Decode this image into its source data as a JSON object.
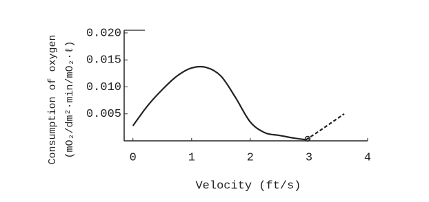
{
  "chart_data": {
    "type": "line",
    "y_label": "Consumption of oxygen",
    "y_label_units": "(mO₂/dm²·min/mO₂·ℓ)",
    "x_label": "Velocity (ft/s)",
    "xlim": [
      -0.15,
      4.0
    ],
    "ylim": [
      0,
      0.0205
    ],
    "xticks": [
      0,
      1,
      2,
      3,
      4
    ],
    "yticks": [
      {
        "value": 0.005,
        "label": "0.005"
      },
      {
        "value": 0.01,
        "label": "0.010"
      },
      {
        "value": 0.015,
        "label": "0.015"
      },
      {
        "value": 0.02,
        "label": "0.020"
      }
    ],
    "series": [
      {
        "style": "solid",
        "color": "#222222",
        "x": [
          0,
          0.25,
          0.5,
          0.75,
          1.0,
          1.25,
          1.5,
          1.75,
          2.0,
          2.25,
          2.5,
          2.75,
          2.95
        ],
        "values": [
          0.0028,
          0.0065,
          0.0095,
          0.012,
          0.0135,
          0.0136,
          0.012,
          0.008,
          0.0035,
          0.0015,
          0.001,
          0.0005,
          0.0002
        ]
      },
      {
        "style": "dashed",
        "color": "#222222",
        "x": [
          2.95,
          3.2,
          3.6
        ],
        "values": [
          0.0002,
          0.002,
          0.005
        ]
      }
    ]
  }
}
